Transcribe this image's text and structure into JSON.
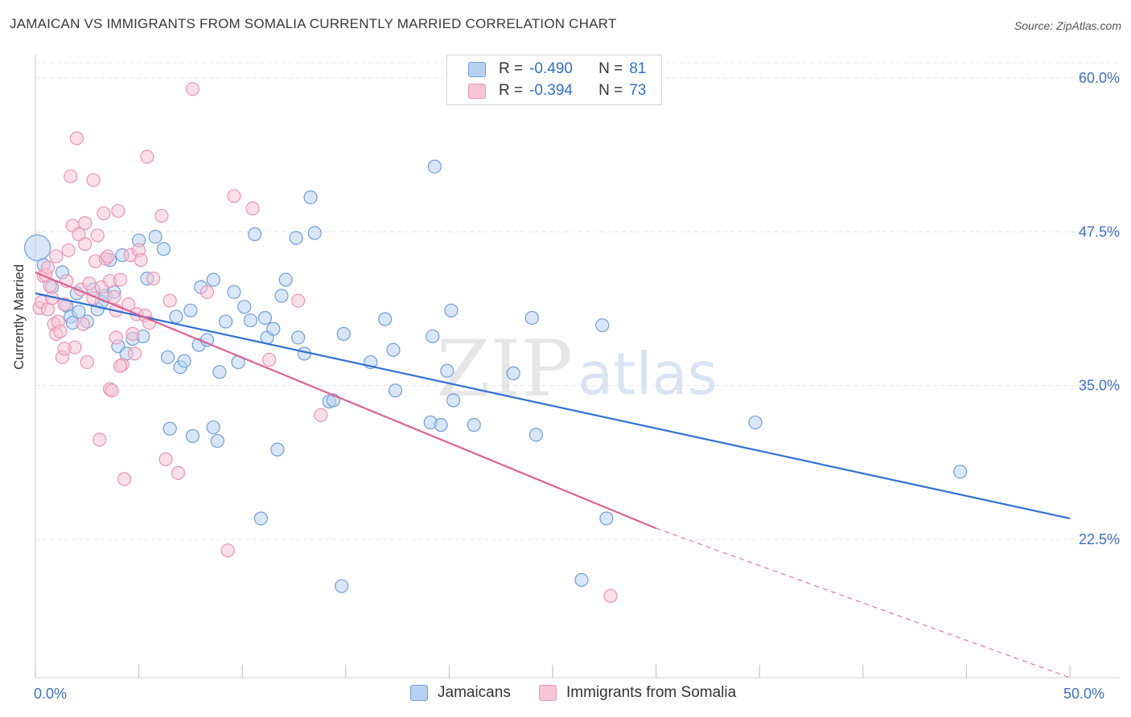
{
  "title": "JAMAICAN VS IMMIGRANTS FROM SOMALIA CURRENTLY MARRIED CORRELATION CHART",
  "source": "Source: ZipAtlas.com",
  "watermark": {
    "zip": "ZIP",
    "atlas": "atlas"
  },
  "legend": {
    "r_label": "R =",
    "n_label": "N =",
    "rows": [
      {
        "r": "-0.490",
        "n": "81"
      },
      {
        "r": "-0.394",
        "n": "73"
      }
    ]
  },
  "colors": {
    "blue_fill": "#b8d1f3",
    "blue_stroke": "#6f9ee0",
    "blue_line": "#2f72d4",
    "pink_fill": "#f7c5d5",
    "pink_stroke": "#e996b2",
    "pink_line": "#e0608f",
    "grid": "#e4e4e4",
    "tick_label": "#3d6fc9"
  },
  "chart_data": {
    "type": "scatter",
    "title": "JAMAICAN VS IMMIGRANTS FROM SOMALIA CURRENTLY MARRIED CORRELATION CHART",
    "xlabel": "",
    "ylabel": "Currently Married",
    "xlim": [
      0,
      50
    ],
    "ylim": [
      12.5,
      62
    ],
    "x_tick_labels": [
      "0.0%",
      "50.0%"
    ],
    "y_ticks": [
      22.5,
      35.0,
      47.5,
      60.0
    ],
    "y_tick_labels": [
      "22.5%",
      "35.0%",
      "47.5%",
      "60.0%"
    ],
    "grid": true,
    "legend_position": "bottom",
    "series": [
      {
        "name": "Jamaicans",
        "r": -0.49,
        "n": 81,
        "trend": {
          "x0": 0,
          "y0": 42.5,
          "x1": 50,
          "y1": 24.2
        },
        "points": [
          [
            0.1,
            46.2
          ],
          [
            0.4,
            44.8
          ],
          [
            0.8,
            43.0
          ],
          [
            1.3,
            44.2
          ],
          [
            1.5,
            41.5
          ],
          [
            1.7,
            40.6
          ],
          [
            1.8,
            40.1
          ],
          [
            2.0,
            42.5
          ],
          [
            2.1,
            41.0
          ],
          [
            2.5,
            40.2
          ],
          [
            2.8,
            42.8
          ],
          [
            3.0,
            41.2
          ],
          [
            3.2,
            41.8
          ],
          [
            3.4,
            42.3
          ],
          [
            3.6,
            45.2
          ],
          [
            3.8,
            42.6
          ],
          [
            4.0,
            38.2
          ],
          [
            4.2,
            45.6
          ],
          [
            4.4,
            37.6
          ],
          [
            4.7,
            38.8
          ],
          [
            5.0,
            46.8
          ],
          [
            5.2,
            39.0
          ],
          [
            5.4,
            43.7
          ],
          [
            5.8,
            47.1
          ],
          [
            6.2,
            46.1
          ],
          [
            6.4,
            37.3
          ],
          [
            6.5,
            31.5
          ],
          [
            6.8,
            40.6
          ],
          [
            7.0,
            36.5
          ],
          [
            7.2,
            37.0
          ],
          [
            7.5,
            41.1
          ],
          [
            7.6,
            30.9
          ],
          [
            7.9,
            38.3
          ],
          [
            8.0,
            43.0
          ],
          [
            8.3,
            38.7
          ],
          [
            8.6,
            31.6
          ],
          [
            8.8,
            30.5
          ],
          [
            8.9,
            36.1
          ],
          [
            9.2,
            40.2
          ],
          [
            9.6,
            42.6
          ],
          [
            9.8,
            36.9
          ],
          [
            10.1,
            41.4
          ],
          [
            10.4,
            40.3
          ],
          [
            10.6,
            47.3
          ],
          [
            10.9,
            24.2
          ],
          [
            11.1,
            40.5
          ],
          [
            11.2,
            38.9
          ],
          [
            11.5,
            39.6
          ],
          [
            11.7,
            29.8
          ],
          [
            11.9,
            42.3
          ],
          [
            12.1,
            43.6
          ],
          [
            12.7,
            38.9
          ],
          [
            13.0,
            37.6
          ],
          [
            13.3,
            50.3
          ],
          [
            13.5,
            47.4
          ],
          [
            14.2,
            33.7
          ],
          [
            14.4,
            33.8
          ],
          [
            14.8,
            18.7
          ],
          [
            14.9,
            39.2
          ],
          [
            16.2,
            36.9
          ],
          [
            16.9,
            40.4
          ],
          [
            17.3,
            37.9
          ],
          [
            17.4,
            34.6
          ],
          [
            19.1,
            32.0
          ],
          [
            19.2,
            39.0
          ],
          [
            19.6,
            31.8
          ],
          [
            19.9,
            36.2
          ],
          [
            19.3,
            52.8
          ],
          [
            20.1,
            41.1
          ],
          [
            20.2,
            33.8
          ],
          [
            21.2,
            31.8
          ],
          [
            23.1,
            36.0
          ],
          [
            24.0,
            40.5
          ],
          [
            24.2,
            31.0
          ],
          [
            26.4,
            19.2
          ],
          [
            27.4,
            39.9
          ],
          [
            27.6,
            24.2
          ],
          [
            34.8,
            32.0
          ],
          [
            44.7,
            28.0
          ],
          [
            12.6,
            47.0
          ],
          [
            8.6,
            43.6
          ]
        ]
      },
      {
        "name": "Immigrants from Somalia",
        "r": -0.394,
        "n": 73,
        "trend": {
          "x0": 0,
          "y0": 44.2,
          "x1": 30,
          "y1": 23.4,
          "extend_x1": 50,
          "extend_y1": 9.6
        },
        "points": [
          [
            0.2,
            41.3
          ],
          [
            0.3,
            41.8
          ],
          [
            0.4,
            43.9
          ],
          [
            0.5,
            44.0
          ],
          [
            0.6,
            41.2
          ],
          [
            0.7,
            43.1
          ],
          [
            0.8,
            42.1
          ],
          [
            0.9,
            40.0
          ],
          [
            1.0,
            39.2
          ],
          [
            1.1,
            40.2
          ],
          [
            1.2,
            39.4
          ],
          [
            1.3,
            37.3
          ],
          [
            1.4,
            41.6
          ],
          [
            1.5,
            43.5
          ],
          [
            1.6,
            46.0
          ],
          [
            1.7,
            52.0
          ],
          [
            1.8,
            48.0
          ],
          [
            1.9,
            38.1
          ],
          [
            2.0,
            55.1
          ],
          [
            2.2,
            42.8
          ],
          [
            2.3,
            40.0
          ],
          [
            2.4,
            46.5
          ],
          [
            2.4,
            48.2
          ],
          [
            2.5,
            36.9
          ],
          [
            2.6,
            43.3
          ],
          [
            2.8,
            42.1
          ],
          [
            2.8,
            51.7
          ],
          [
            2.9,
            45.1
          ],
          [
            3.0,
            47.2
          ],
          [
            3.1,
            30.6
          ],
          [
            3.2,
            43.0
          ],
          [
            3.3,
            49.0
          ],
          [
            3.4,
            45.3
          ],
          [
            3.5,
            45.5
          ],
          [
            3.6,
            43.5
          ],
          [
            3.6,
            34.7
          ],
          [
            3.8,
            42.2
          ],
          [
            3.9,
            38.9
          ],
          [
            3.9,
            41.1
          ],
          [
            4.0,
            49.2
          ],
          [
            4.1,
            43.6
          ],
          [
            4.2,
            36.7
          ],
          [
            4.3,
            27.4
          ],
          [
            4.5,
            41.6
          ],
          [
            4.6,
            45.6
          ],
          [
            4.7,
            39.2
          ],
          [
            4.8,
            37.6
          ],
          [
            4.9,
            40.8
          ],
          [
            5.0,
            46.0
          ],
          [
            5.1,
            45.2
          ],
          [
            5.3,
            40.7
          ],
          [
            5.4,
            53.6
          ],
          [
            5.5,
            40.1
          ],
          [
            5.7,
            43.7
          ],
          [
            6.1,
            48.8
          ],
          [
            6.3,
            29.0
          ],
          [
            6.5,
            41.9
          ],
          [
            6.9,
            27.9
          ],
          [
            7.6,
            59.1
          ],
          [
            8.3,
            42.6
          ],
          [
            9.3,
            21.6
          ],
          [
            9.6,
            50.4
          ],
          [
            10.5,
            49.4
          ],
          [
            11.3,
            37.1
          ],
          [
            12.7,
            41.9
          ],
          [
            13.8,
            32.6
          ],
          [
            27.8,
            17.9
          ],
          [
            4.1,
            36.6
          ],
          [
            3.7,
            34.6
          ],
          [
            2.1,
            47.3
          ],
          [
            1.0,
            45.5
          ],
          [
            0.6,
            44.6
          ],
          [
            1.4,
            38.0
          ]
        ]
      }
    ]
  },
  "bottom_legend": [
    "Jamaicans",
    "Immigrants from Somalia"
  ]
}
